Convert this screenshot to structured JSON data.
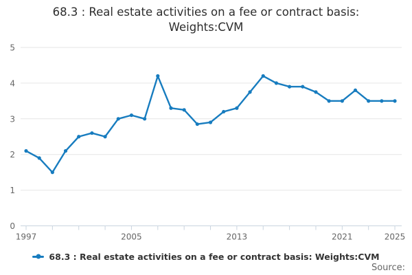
{
  "title": {
    "lines": [
      "68.3 : Real estate activities on a fee or contract basis:",
      "Weights:CVM"
    ],
    "full": "68.3 : Real estate activities on a fee or contract basis: Weights:CVM"
  },
  "legend": {
    "marker_icon": "line-with-dot-icon",
    "label": "68.3 : Real estate activities on a fee or contract basis: Weights:CVM"
  },
  "footer": {
    "source_label": "Source:"
  },
  "colors": {
    "series": "#177CBF",
    "grid": "#E6E6E6",
    "axis": "#C9D4DF",
    "tick_label": "#666666",
    "title_text": "#2D2D2D",
    "legend_text": "#333333",
    "source_text": "#666666",
    "background": "#FFFFFF"
  },
  "chart_data": {
    "type": "line",
    "title": "68.3 : Real estate activities on a fee or contract basis: Weights:CVM",
    "xlabel": "",
    "ylabel": "",
    "ylim": [
      0,
      5
    ],
    "y_ticks": [
      0,
      1,
      2,
      3,
      4,
      5
    ],
    "x_tick_interval_years": 2,
    "x_axis_labels": [
      "1997",
      "2005",
      "2013",
      "2021",
      "2025"
    ],
    "grid": "horizontal",
    "legend_position": "bottom",
    "marker": "circle",
    "x": [
      1997,
      1998,
      1999,
      2000,
      2001,
      2002,
      2003,
      2004,
      2005,
      2006,
      2007,
      2008,
      2009,
      2010,
      2011,
      2012,
      2013,
      2014,
      2015,
      2016,
      2017,
      2018,
      2019,
      2020,
      2021,
      2022,
      2023,
      2024,
      2025
    ],
    "series": [
      {
        "name": "68.3 : Real estate activities on a fee or contract basis: Weights:CVM",
        "values": [
          2.1,
          1.9,
          1.5,
          2.1,
          2.5,
          2.6,
          2.5,
          3.0,
          3.1,
          3.0,
          4.2,
          3.3,
          3.25,
          2.85,
          2.9,
          3.2,
          3.3,
          3.75,
          4.2,
          4.0,
          3.9,
          3.9,
          3.75,
          3.5,
          3.5,
          3.8,
          3.5,
          3.5,
          3.5
        ]
      }
    ]
  }
}
